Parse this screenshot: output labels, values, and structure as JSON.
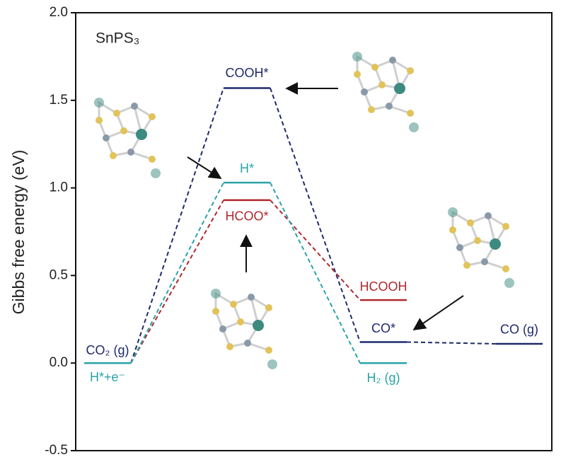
{
  "chart_data": {
    "type": "energy-level",
    "title": "SnPS₃",
    "y_label": "Gibbs free energy (eV)",
    "categories": [
      null,
      null,
      null,
      null
    ],
    "ylim": [
      -0.5,
      2.0
    ],
    "yticks": [
      -0.5,
      {
        "value": 0,
        "label": "0.0"
      },
      0.5,
      {
        "value": 1,
        "label": "1.0"
      },
      1.5,
      {
        "value": 2,
        "label": "2.0"
      }
    ],
    "series": [
      {
        "color": "#1f2a6b",
        "values": [
          0,
          1.57,
          0.12,
          0.11
        ],
        "labels": [
          "CO₂ (g)",
          "COOH*",
          "CO*",
          "CO (g)"
        ]
      },
      {
        "color": "#b0282e",
        "values": [
          0,
          0.93,
          0.36,
          null
        ],
        "labels": [
          null,
          "HCOO*",
          "HCOOH",
          null
        ]
      },
      {
        "color": "#2aa3a8",
        "values": [
          0,
          1.03,
          0,
          null
        ],
        "labels": [
          "H*+e⁻",
          "H*",
          "H₂ (g)",
          null
        ]
      }
    ]
  }
}
